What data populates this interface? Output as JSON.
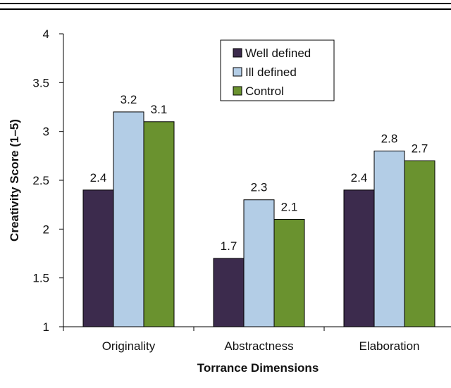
{
  "colors": {
    "series": [
      "#3c2b4d",
      "#b3cde6",
      "#6a922f"
    ],
    "rule": "#000000",
    "axis": "#000000"
  },
  "chart_data": {
    "type": "bar",
    "title": "",
    "xlabel": "Torrance Dimensions",
    "ylabel": "Creativity Score (1–5)",
    "categories": [
      "Originality",
      "Abstractness",
      "Elaboration"
    ],
    "ylim": [
      1,
      4
    ],
    "yticks": [
      "1",
      "1.5",
      "2",
      "2.5",
      "3",
      "3.5",
      "4"
    ],
    "grid": false,
    "legend_position": "top-center",
    "series": [
      {
        "name": "Well defined",
        "values": [
          2.4,
          1.7,
          2.4
        ],
        "labels": [
          "2.4",
          "1.7",
          "2.4"
        ]
      },
      {
        "name": "Ill defined",
        "values": [
          3.2,
          2.3,
          2.8
        ],
        "labels": [
          "3.2",
          "2.3",
          "2.8"
        ]
      },
      {
        "name": "Control",
        "values": [
          3.1,
          2.1,
          2.7
        ],
        "labels": [
          "3.1",
          "2.1",
          "2.7"
        ]
      }
    ]
  }
}
